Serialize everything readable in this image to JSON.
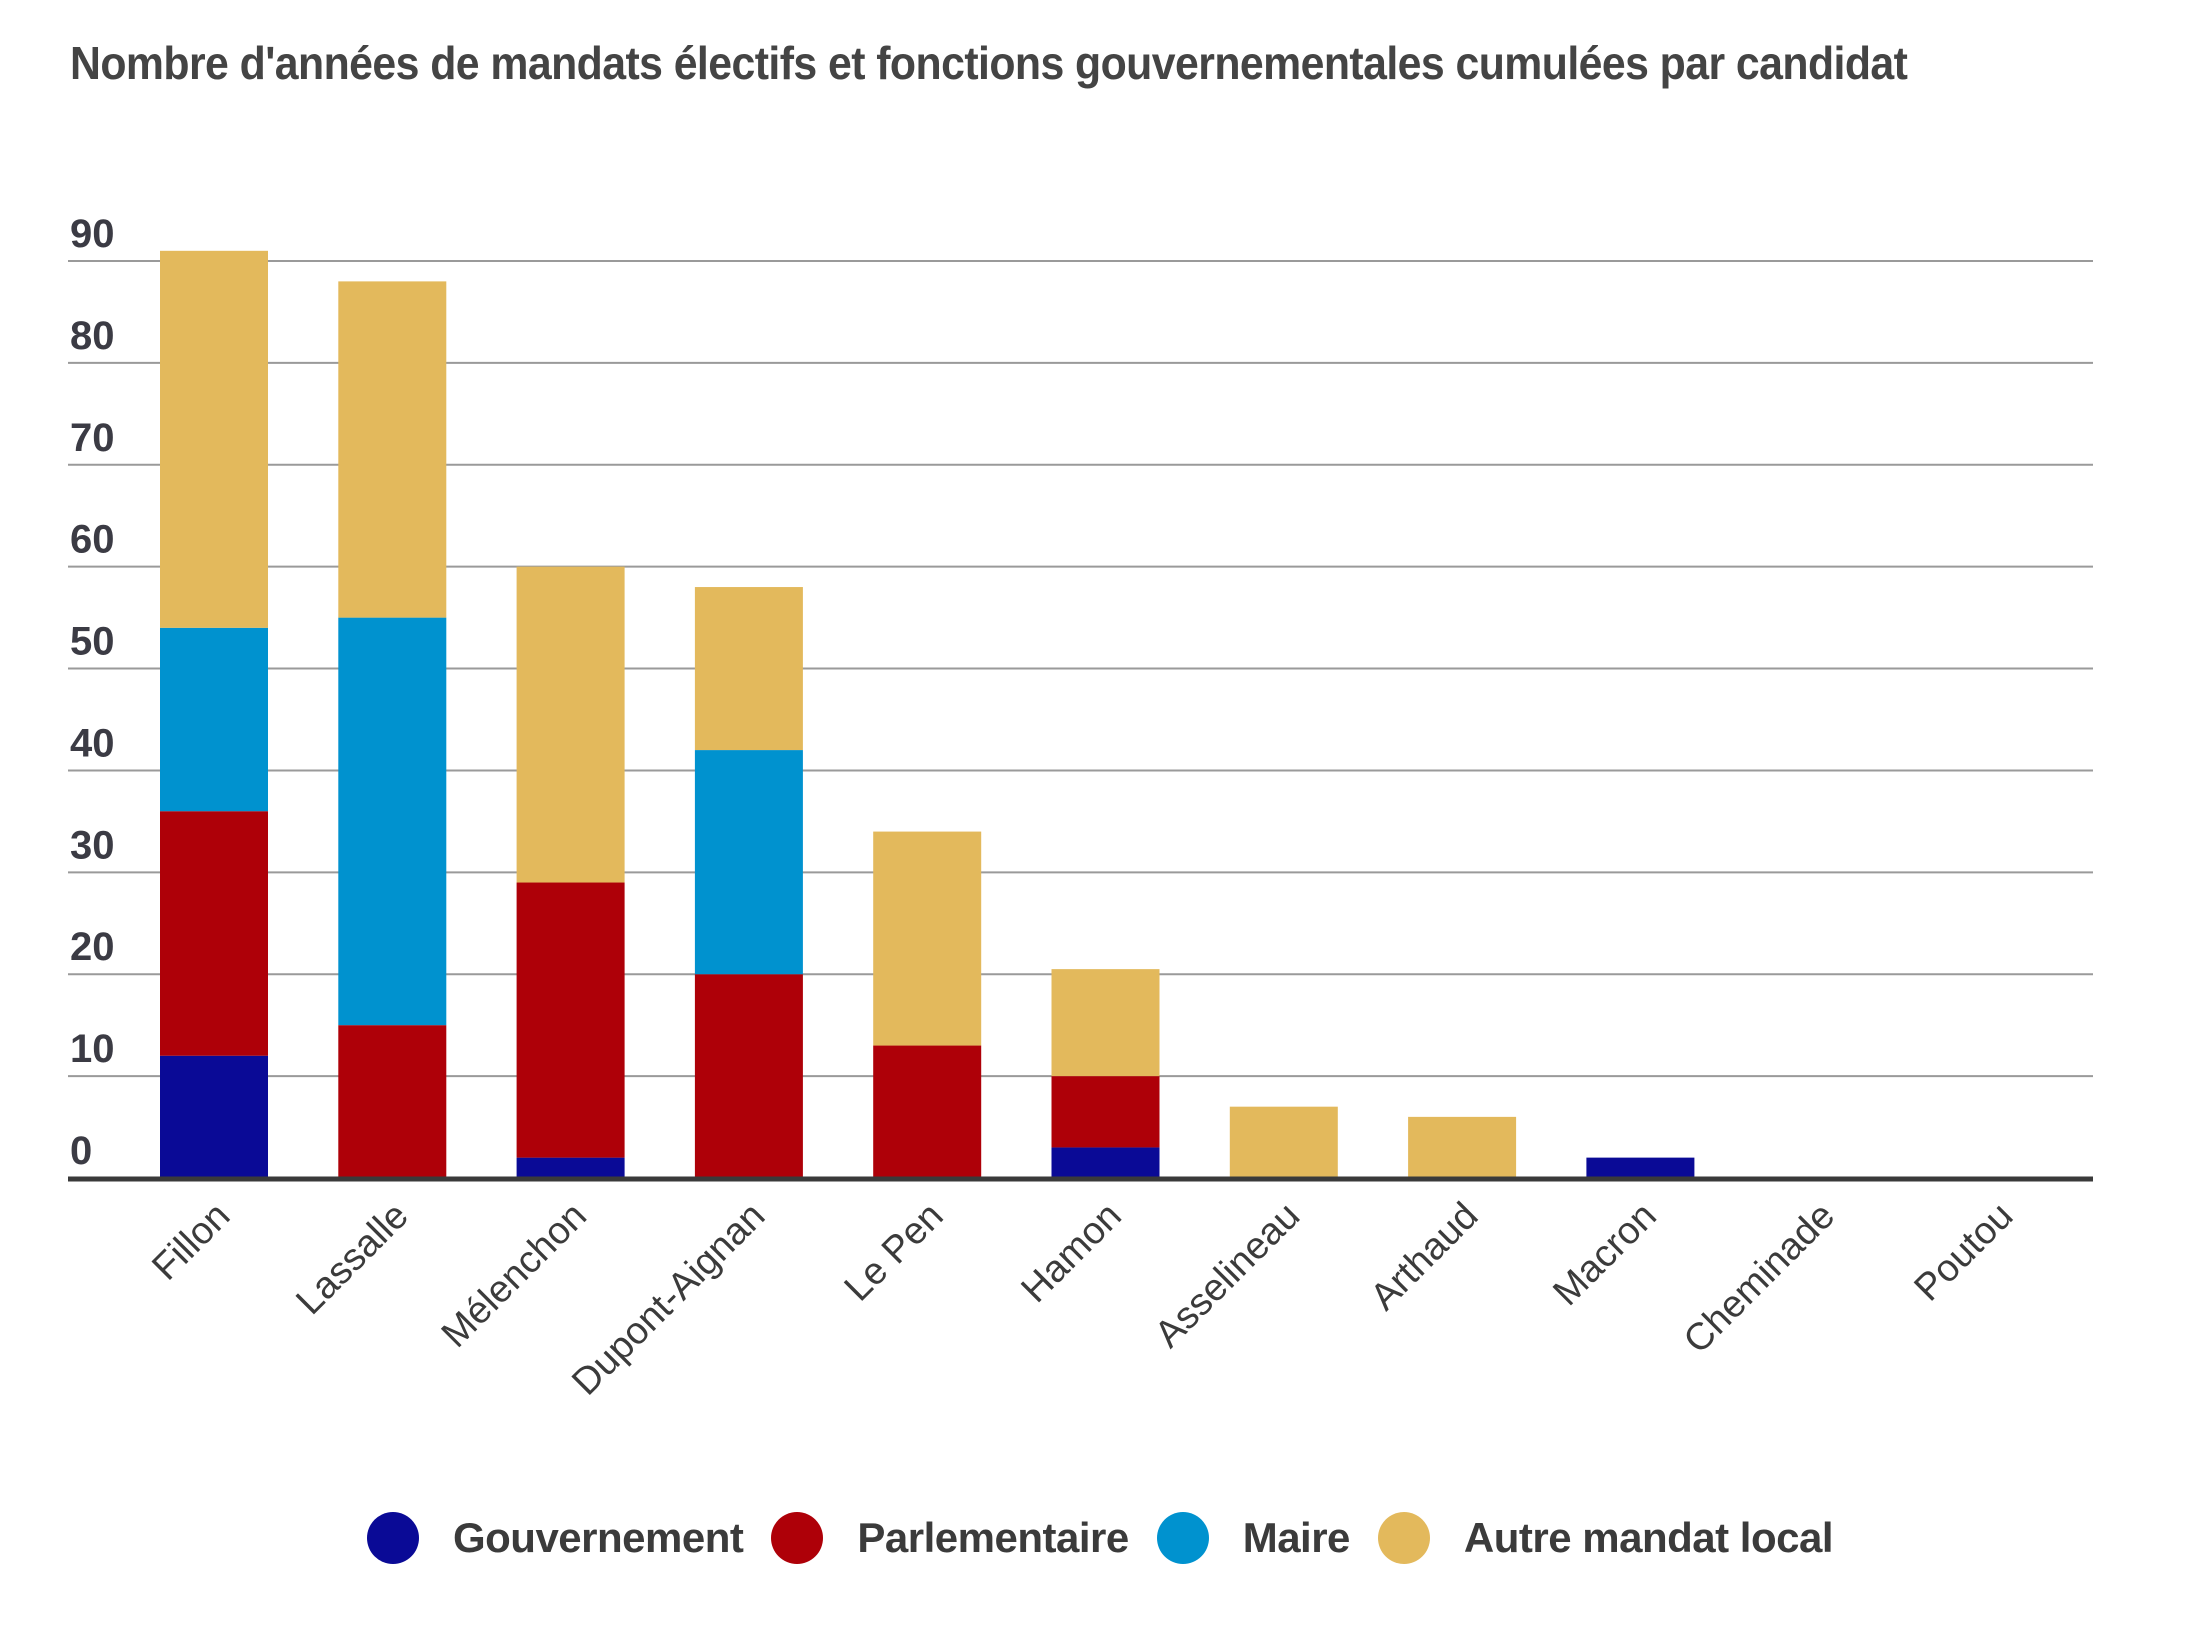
{
  "chart_data": {
    "type": "bar",
    "stacked": true,
    "title": "Nombre d'années de mandats électifs et fonctions gouvernementales cumulées par candidat",
    "xlabel": "",
    "ylabel": "",
    "ylim": [
      0,
      90
    ],
    "yticks": [
      0,
      10,
      20,
      30,
      40,
      50,
      60,
      70,
      80,
      90
    ],
    "grid": true,
    "legend_position": "bottom",
    "categories": [
      "Fillon",
      "Lassalle",
      "Mélenchon",
      "Dupont-Aignan",
      "Le Pen",
      "Hamon",
      "Asselineau",
      "Arthaud",
      "Macron",
      "Cheminade",
      "Poutou"
    ],
    "series": [
      {
        "name": "Gouvernement",
        "color": "#0a0a96",
        "values": [
          12,
          0,
          2,
          0,
          0,
          3,
          0,
          0,
          2,
          0,
          0
        ]
      },
      {
        "name": "Parlementaire",
        "color": "#ae0008",
        "values": [
          24,
          15,
          27,
          20,
          13,
          7,
          0,
          0,
          0,
          0,
          0
        ]
      },
      {
        "name": "Maire",
        "color": "#0092cf",
        "values": [
          18,
          40,
          0,
          22,
          0,
          0,
          0,
          0,
          0,
          0,
          0
        ]
      },
      {
        "name": "Autre mandat local",
        "color": "#e3b95c",
        "values": [
          37,
          33,
          31,
          16,
          21,
          10.5,
          7,
          6,
          0,
          0,
          0
        ]
      }
    ]
  }
}
